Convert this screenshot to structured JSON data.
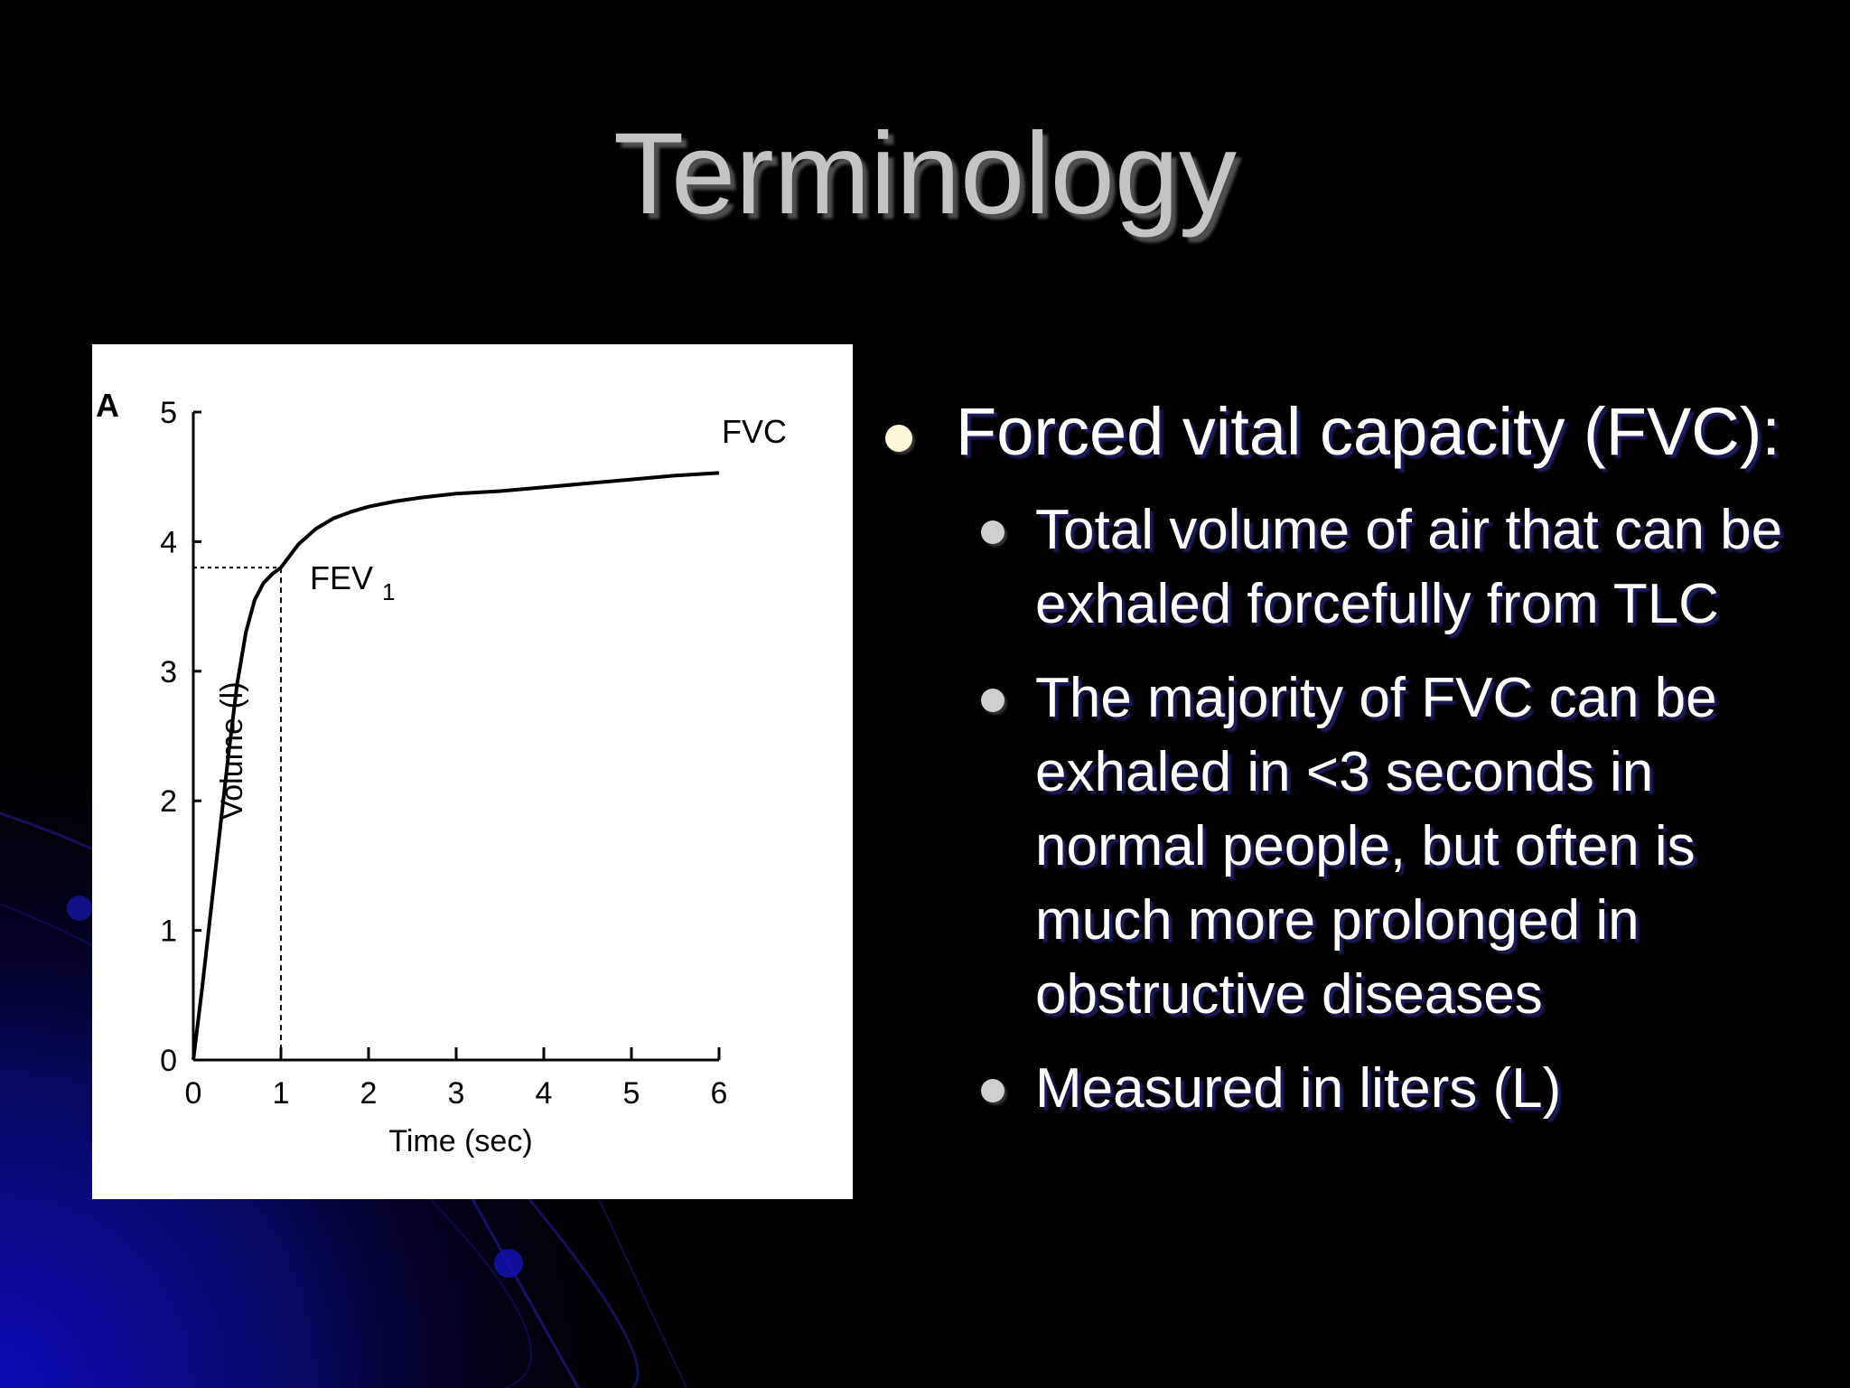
{
  "slide": {
    "title": "Terminology"
  },
  "figure": {
    "panel_label": "A",
    "curve_label": "FVC",
    "marker_label": "FEV",
    "marker_subscript": "1"
  },
  "chart_data": {
    "type": "line",
    "xlabel": "Time (sec)",
    "ylabel": "Volume (l)",
    "xlim": [
      0,
      6
    ],
    "ylim": [
      0,
      5
    ],
    "xticks": [
      "0",
      "1",
      "2",
      "3",
      "4",
      "5",
      "6"
    ],
    "yticks": [
      "0",
      "1",
      "2",
      "3",
      "4",
      "5"
    ],
    "grid": false,
    "series": [
      {
        "x": [
          0,
          0.1,
          0.2,
          0.3,
          0.4,
          0.5,
          0.6,
          0.7,
          0.8,
          0.9,
          1.0,
          1.2,
          1.4,
          1.6,
          1.8,
          2.0,
          2.3,
          2.6,
          3.0,
          3.5,
          4.0,
          4.5,
          5.0,
          5.5,
          6.0
        ],
        "y": [
          0,
          0.55,
          1.15,
          1.75,
          2.35,
          2.9,
          3.3,
          3.55,
          3.68,
          3.75,
          3.8,
          3.98,
          4.1,
          4.18,
          4.23,
          4.27,
          4.31,
          4.34,
          4.37,
          4.39,
          4.42,
          4.45,
          4.48,
          4.51,
          4.53
        ]
      }
    ],
    "annotations": [
      {
        "label": "FEV1",
        "x": 1,
        "y": 3.8,
        "style": "dashed guide lines"
      },
      {
        "label": "FVC",
        "x": 6,
        "y": 4.53
      }
    ]
  },
  "bullets": {
    "main": "Forced vital capacity (FVC):",
    "sub": [
      "Total volume of air that can be exhaled forcefully from TLC",
      "The majority of FVC can be exhaled in <3 seconds in normal people, but often is much more prolonged in obstructive diseases",
      "Measured in liters (L)"
    ]
  },
  "colors": {
    "background": "#000000",
    "accent_blue": "#0a0a9c",
    "title_gray": "#c4c4c4",
    "text": "#ffffff"
  }
}
